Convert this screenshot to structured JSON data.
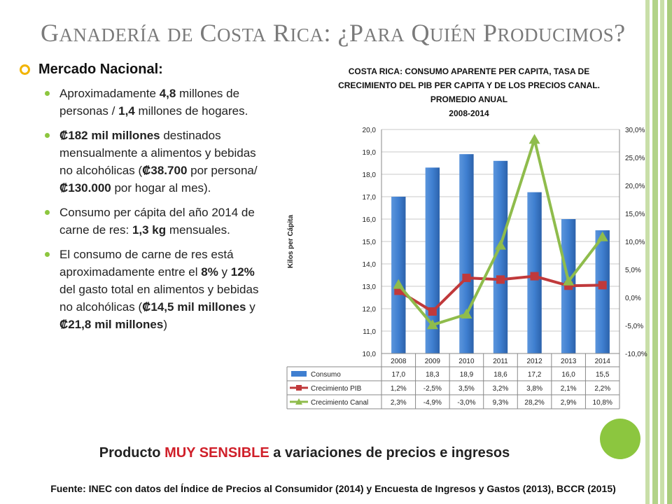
{
  "title": "Ganadería de Costa Rica: ¿Para Quién Producimos?",
  "section_heading": "Mercado Nacional:",
  "bullets": [
    {
      "parts": [
        {
          "t": "Aproximadamente "
        },
        {
          "t": "4,8",
          "b": true
        },
        {
          "t": " millones de personas / "
        },
        {
          "t": "1,4",
          "b": true
        },
        {
          "t": " millones de hogares."
        }
      ]
    },
    {
      "parts": [
        {
          "t": "₡182 mil millones",
          "b": true
        },
        {
          "t": " destinados mensualmente a alimentos y bebidas no alcohólicas ("
        },
        {
          "t": "₡38.700",
          "b": true
        },
        {
          "t": " por persona/ "
        },
        {
          "t": "₡130.000",
          "b": true
        },
        {
          "t": " por hogar al mes)."
        }
      ]
    },
    {
      "parts": [
        {
          "t": "Consumo per cápita del año 2014 de carne de res: "
        },
        {
          "t": "1,3 kg",
          "b": true
        },
        {
          "t": " mensuales."
        }
      ]
    },
    {
      "parts": [
        {
          "t": "El consumo de carne de res está aproximadamente entre el "
        },
        {
          "t": "8%",
          "b": true
        },
        {
          "t": " y "
        },
        {
          "t": "12%",
          "b": true
        },
        {
          "t": " del gasto total en alimentos y bebidas no alcohólicas ("
        },
        {
          "t": "₡14,5 mil millones",
          "b": true
        },
        {
          "t": " y "
        },
        {
          "t": "₡21,8 mil millones",
          "b": true
        },
        {
          "t": ")"
        }
      ]
    }
  ],
  "highlight": {
    "pre": "Producto ",
    "red": "MUY SENSIBLE",
    "post": " a variaciones de precios e ingresos"
  },
  "source": "Fuente: INEC con datos del Índice de Precios al Consumidor (2014) y Encuesta de Ingresos y Gastos (2013), BCCR (2015)",
  "colors": {
    "bars": "#3f7fd0",
    "pib": "#c0393b",
    "canal": "#8fbc4c",
    "accent": "#f2b400",
    "green": "#8cc63f"
  },
  "chart_data": {
    "type": "bar",
    "title_lines": [
      "COSTA RICA: CONSUMO APARENTE PER CAPITA, TASA DE",
      "CRECIMIENTO DEL PIB PER CAPITA Y DE LOS PRECIOS CANAL.",
      "PROMEDIO ANUAL",
      "2008-2014"
    ],
    "ylabel": "Kilos per Cápita",
    "categories": [
      "2008",
      "2009",
      "2010",
      "2011",
      "2012",
      "2013",
      "2014"
    ],
    "ylim": [
      10,
      20
    ],
    "y2lim": [
      -10,
      30
    ],
    "y_ticks": [
      "10,0",
      "11,0",
      "12,0",
      "13,0",
      "14,0",
      "15,0",
      "16,0",
      "17,0",
      "18,0",
      "19,0",
      "20,0"
    ],
    "y2_ticks": [
      "-10,0%",
      "-5,0%",
      "0,0%",
      "5,0%",
      "10,0%",
      "15,0%",
      "20,0%",
      "25,0%",
      "30,0%"
    ],
    "series": [
      {
        "name": "Consumo",
        "kind": "bar",
        "axis": "left",
        "values": [
          17.0,
          18.3,
          18.9,
          18.6,
          17.2,
          16.0,
          15.5
        ],
        "labels": [
          "17,0",
          "18,3",
          "18,9",
          "18,6",
          "17,2",
          "16,0",
          "15,5"
        ]
      },
      {
        "name": "Crecimiento PIB",
        "kind": "line",
        "axis": "right",
        "marker": "square",
        "values": [
          1.2,
          -2.5,
          3.5,
          3.2,
          3.8,
          2.1,
          2.2
        ],
        "labels": [
          "1,2%",
          "-2,5%",
          "3,5%",
          "3,2%",
          "3,8%",
          "2,1%",
          "2,2%"
        ]
      },
      {
        "name": "Crecimiento Canal",
        "kind": "line",
        "axis": "right",
        "marker": "triangle",
        "values": [
          2.3,
          -4.9,
          -3.0,
          9.3,
          28.2,
          2.9,
          10.8
        ],
        "labels": [
          "2,3%",
          "-4,9%",
          "-3,0%",
          "9,3%",
          "28,2%",
          "2,9%",
          "10,8%"
        ]
      }
    ]
  }
}
